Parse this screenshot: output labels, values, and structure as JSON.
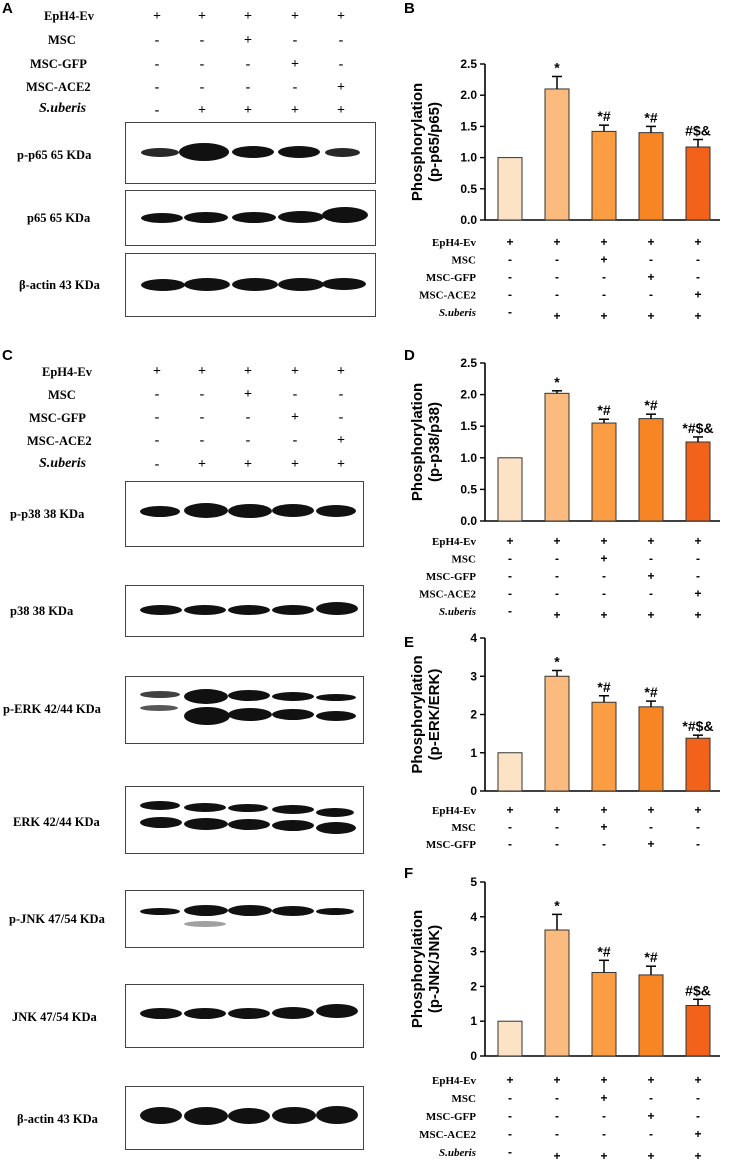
{
  "panel_letters": {
    "a": "A",
    "b": "B",
    "c": "C",
    "d": "D",
    "e": "E",
    "f": "F"
  },
  "conditions": {
    "rows": [
      "EpH4-Ev",
      "MSC",
      "MSC-GFP",
      "MSC-ACE2",
      "S.uberis"
    ],
    "signs": [
      [
        "+",
        "+",
        "+",
        "+",
        "+"
      ],
      [
        "-",
        "-",
        "+",
        "-",
        "-"
      ],
      [
        "-",
        "-",
        "-",
        "+",
        "-"
      ],
      [
        "-",
        "-",
        "-",
        "-",
        "+"
      ],
      [
        "-",
        "+",
        "+",
        "+",
        "+"
      ]
    ]
  },
  "blots": {
    "p_p65": "p-p65  65 KDa",
    "p65": "p65  65 KDa",
    "actin_a": "β-actin  43 KDa",
    "p_p38": "p-p38   38 KDa",
    "p38": "p38   38 KDa",
    "p_erk": "p-ERK 42/44 KDa",
    "erk": "ERK   42/44 KDa",
    "p_jnk": "p-JNK  47/54 KDa",
    "jnk": "JNK  47/54 KDa",
    "actin_c": "β-actin  43 KDa"
  },
  "colors": [
    "#fde3c5",
    "#fbbb7e",
    "#fb9d43",
    "#f88523",
    "#f2621a"
  ],
  "chart_data": [
    {
      "type": "bar",
      "panel": "B",
      "ylabel": "Phosphorylation\n(p-p65/p65)",
      "ylim": [
        0,
        2.5
      ],
      "ticks": [
        "0.0",
        "0.5",
        "1.0",
        "1.5",
        "2.0",
        "2.5"
      ],
      "tick_values": [
        0,
        0.5,
        1,
        1.5,
        2,
        2.5
      ],
      "values": [
        1.0,
        2.1,
        1.42,
        1.4,
        1.17
      ],
      "errors": [
        0,
        0.2,
        0.1,
        0.1,
        0.12
      ],
      "annotations": [
        "",
        "*",
        "*#",
        "*#",
        "#$&"
      ]
    },
    {
      "type": "bar",
      "panel": "D",
      "ylabel": "Phosphorylation\n(p-p38/p38)",
      "ylim": [
        0,
        2.5
      ],
      "ticks": [
        "0.0",
        "0.5",
        "1.0",
        "1.5",
        "2.0",
        "2.5"
      ],
      "tick_values": [
        0,
        0.5,
        1,
        1.5,
        2,
        2.5
      ],
      "values": [
        1.0,
        2.02,
        1.55,
        1.62,
        1.25
      ],
      "errors": [
        0,
        0.04,
        0.06,
        0.07,
        0.08
      ],
      "annotations": [
        "",
        "*",
        "*#",
        "*#",
        "*#$&"
      ]
    },
    {
      "type": "bar",
      "panel": "E",
      "ylabel": "Phosphorylation\n(p-ERK/ERK)",
      "ylim": [
        0,
        4
      ],
      "ticks": [
        "0",
        "1",
        "2",
        "3",
        "4"
      ],
      "tick_values": [
        0,
        1,
        2,
        3,
        4
      ],
      "values": [
        1.0,
        3.0,
        2.32,
        2.2,
        1.38
      ],
      "errors": [
        0,
        0.15,
        0.17,
        0.15,
        0.08
      ],
      "annotations": [
        "",
        "*",
        "*#",
        "*#",
        "*#$&"
      ]
    },
    {
      "type": "bar",
      "panel": "F",
      "ylabel": "Phosphorylation\n(p-JNK/JNK)",
      "ylim": [
        0,
        5
      ],
      "ticks": [
        "0",
        "1",
        "2",
        "3",
        "4",
        "5"
      ],
      "tick_values": [
        0,
        1,
        2,
        3,
        4,
        5
      ],
      "values": [
        1.0,
        3.62,
        2.4,
        2.33,
        1.45
      ],
      "errors": [
        0,
        0.45,
        0.35,
        0.25,
        0.18
      ],
      "annotations": [
        "",
        "*",
        "*#",
        "*#",
        "#$&"
      ]
    }
  ]
}
